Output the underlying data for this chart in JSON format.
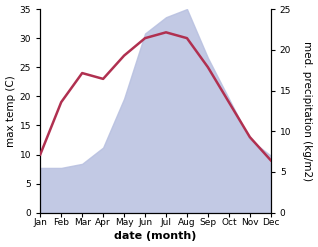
{
  "months": [
    "Jan",
    "Feb",
    "Mar",
    "Apr",
    "May",
    "Jun",
    "Jul",
    "Aug",
    "Sep",
    "Oct",
    "Nov",
    "Dec"
  ],
  "temperature": [
    10,
    19,
    24,
    23,
    27,
    30,
    31,
    30,
    25,
    19,
    13,
    9
  ],
  "precipitation": [
    5.5,
    5.5,
    6.0,
    8.0,
    14.0,
    22.0,
    24.0,
    25.0,
    19.0,
    14.0,
    9.0,
    7.0
  ],
  "temp_color": "#b03050",
  "precip_fill_color": "#b8c0e0",
  "temp_ylim": [
    0,
    35
  ],
  "precip_ylim": [
    0,
    25
  ],
  "temp_yticks": [
    0,
    5,
    10,
    15,
    20,
    25,
    30,
    35
  ],
  "precip_yticks": [
    0,
    5,
    10,
    15,
    20,
    25
  ],
  "xlabel": "date (month)",
  "ylabel_left": "max temp (C)",
  "ylabel_right": "med. precipitation (kg/m2)",
  "line_width": 1.8,
  "tick_fontsize": 6.5,
  "label_fontsize": 7.5,
  "xlabel_fontsize": 8,
  "background_color": "#ffffff"
}
